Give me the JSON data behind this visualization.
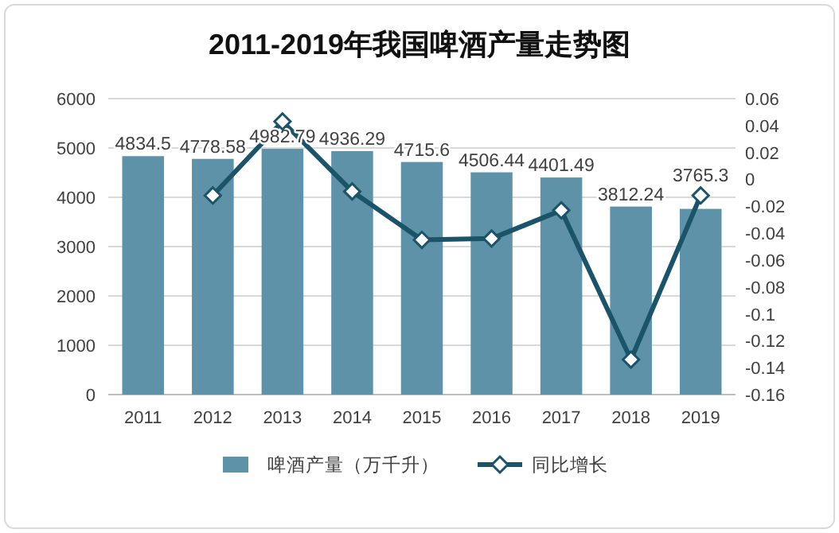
{
  "chart_data": {
    "type": "bar",
    "title": "2011-2019年我国啤酒产量走势图",
    "categories": [
      "2011",
      "2012",
      "2013",
      "2014",
      "2015",
      "2016",
      "2017",
      "2018",
      "2019"
    ],
    "series": [
      {
        "name": "啤酒产量（万千升）",
        "color": "#5e92a8",
        "values": [
          4834.5,
          4778.58,
          4982.79,
          4936.29,
          4715.6,
          4506.44,
          4401.49,
          3812.24,
          3765.3
        ],
        "value_labels": [
          "4834.5",
          "4778.58",
          "4982.79",
          "4936.29",
          "4715.6",
          "4506.44",
          "4401.49",
          "3812.24",
          "3765.3"
        ]
      },
      {
        "name": "同比增长",
        "type": "line",
        "axis": "y2",
        "color": "#1b5369",
        "values": [
          null,
          -0.012,
          0.043,
          -0.009,
          -0.045,
          -0.044,
          -0.023,
          -0.134,
          -0.012
        ]
      }
    ],
    "ylim": [
      0,
      6000
    ],
    "yticks": [
      0,
      1000,
      2000,
      3000,
      4000,
      5000,
      6000
    ],
    "y2lim": [
      -0.16,
      0.06
    ],
    "y2ticks": [
      -0.16,
      -0.14,
      -0.12,
      -0.1,
      -0.08,
      -0.06,
      -0.04,
      -0.02,
      0,
      0.02,
      0.04,
      0.06
    ],
    "grid": "y",
    "legend": "bottom",
    "marker": "diamond"
  }
}
